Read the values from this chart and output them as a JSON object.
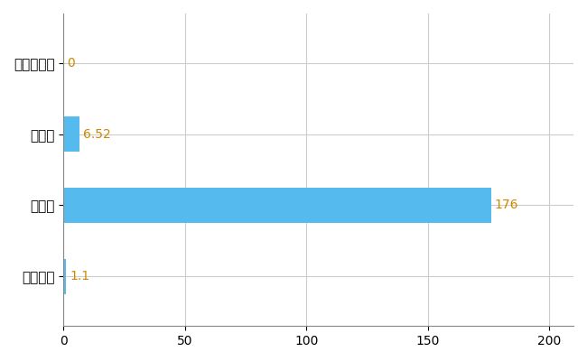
{
  "categories": [
    "あきる野市",
    "県平均",
    "県最大",
    "全国平均"
  ],
  "values": [
    0,
    6.52,
    176,
    1.1
  ],
  "bar_color": "#55BBEE",
  "value_labels": [
    "0",
    "6.52",
    "176",
    "1.1"
  ],
  "value_label_color": "#CC8800",
  "xlim": [
    0,
    210
  ],
  "xticks": [
    0,
    50,
    100,
    150,
    200
  ],
  "grid_color": "#CCCCCC",
  "bar_height": 0.5,
  "label_fontsize": 11,
  "tick_fontsize": 10,
  "value_label_fontsize": 10
}
